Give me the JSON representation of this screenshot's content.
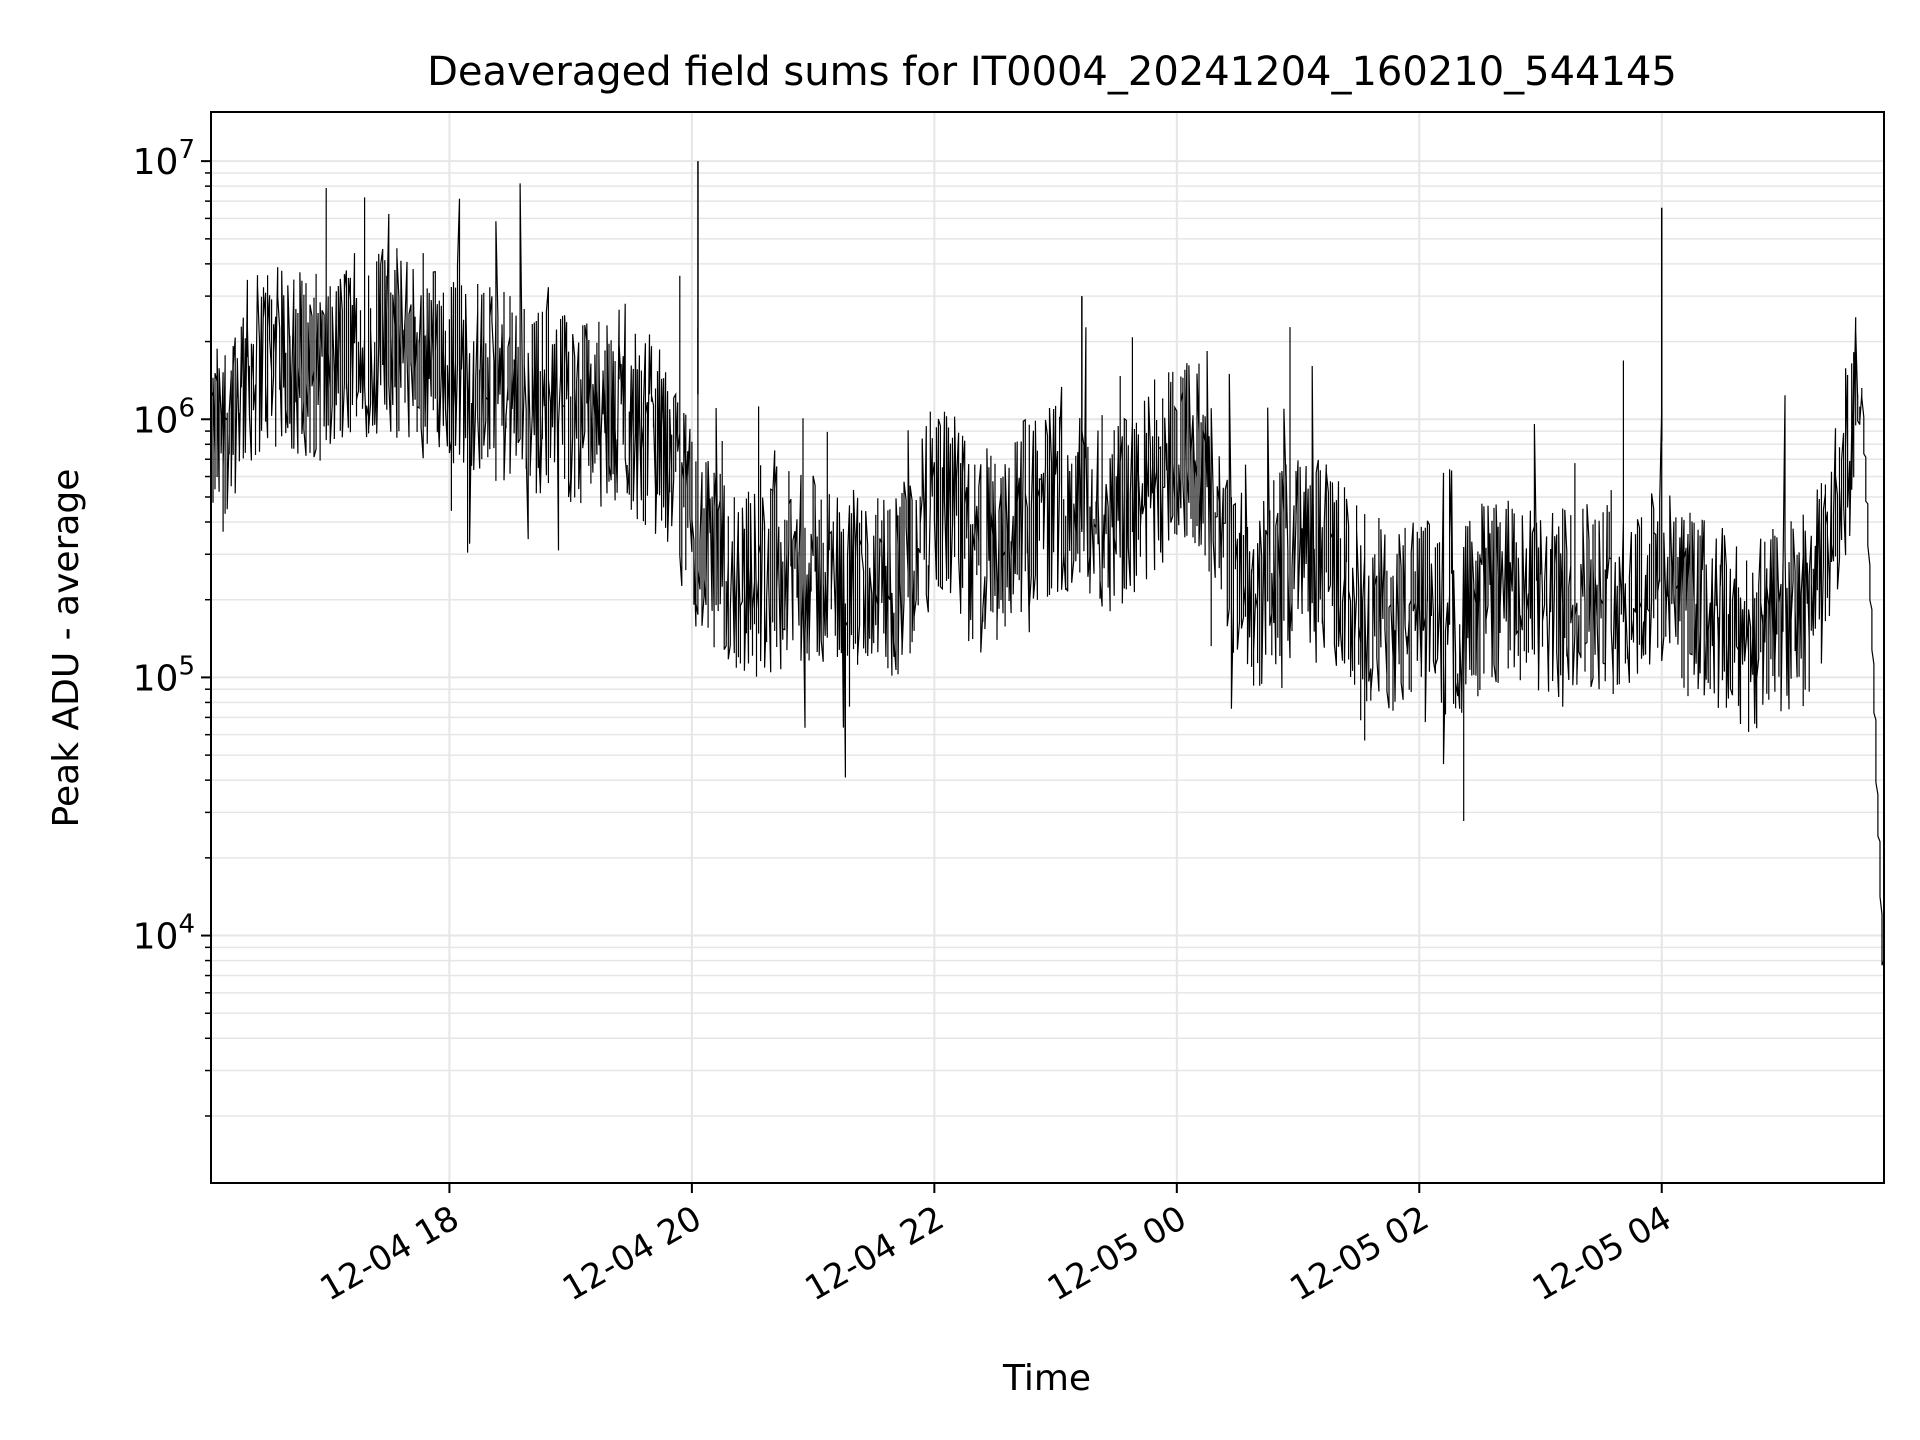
{
  "chart_data": {
    "type": "line",
    "title": "Deaveraged field sums for IT0004_20241204_160210_544145",
    "xlabel": "Time",
    "ylabel": "Peak ADU - average",
    "y_scale": "log",
    "ylim": [
      1100,
      15500000
    ],
    "xlim": [
      "2024-12-04 16:02",
      "2024-12-05 05:50"
    ],
    "grid": "major and minor, light gray",
    "line_color": "#000000",
    "x_ticks": [
      {
        "t": "2024-12-04 18:00",
        "label": "12-04 18"
      },
      {
        "t": "2024-12-04 20:00",
        "label": "12-04 20"
      },
      {
        "t": "2024-12-04 22:00",
        "label": "12-04 22"
      },
      {
        "t": "2024-12-05 00:00",
        "label": "12-05 00"
      },
      {
        "t": "2024-12-05 02:00",
        "label": "12-05 02"
      },
      {
        "t": "2024-12-05 04:00",
        "label": "12-05 04"
      }
    ],
    "y_ticks": [
      {
        "value": 10000,
        "mantissa": "10",
        "exponent": "4"
      },
      {
        "value": 100000,
        "mantissa": "10",
        "exponent": "5"
      },
      {
        "value": 1000000,
        "mantissa": "10",
        "exponent": "6"
      },
      {
        "value": 10000000,
        "mantissa": "10",
        "exponent": "7"
      }
    ],
    "series": [
      {
        "x": [
          "2024-12-04 16:02",
          "2024-12-04 16:10",
          "2024-12-04 16:20",
          "2024-12-04 16:30",
          "2024-12-04 16:40",
          "2024-12-04 16:50",
          "2024-12-04 17:00",
          "2024-12-04 17:10",
          "2024-12-04 17:20",
          "2024-12-04 17:30",
          "2024-12-04 17:40",
          "2024-12-04 17:50",
          "2024-12-04 18:00",
          "2024-12-04 18:10",
          "2024-12-04 18:20",
          "2024-12-04 18:30",
          "2024-12-04 18:40",
          "2024-12-04 18:50",
          "2024-12-04 19:00",
          "2024-12-04 19:10",
          "2024-12-04 19:20",
          "2024-12-04 19:30",
          "2024-12-04 19:40",
          "2024-12-04 19:50",
          "2024-12-04 20:00",
          "2024-12-04 20:10",
          "2024-12-04 20:20",
          "2024-12-04 20:30",
          "2024-12-04 20:40",
          "2024-12-04 20:50",
          "2024-12-04 21:00",
          "2024-12-04 21:10",
          "2024-12-04 21:20",
          "2024-12-04 21:30",
          "2024-12-04 21:40",
          "2024-12-04 21:50",
          "2024-12-04 22:00",
          "2024-12-04 22:10",
          "2024-12-04 22:20",
          "2024-12-04 22:30",
          "2024-12-04 22:40",
          "2024-12-04 22:50",
          "2024-12-04 23:00",
          "2024-12-04 23:10",
          "2024-12-04 23:20",
          "2024-12-04 23:30",
          "2024-12-04 23:40",
          "2024-12-04 23:50",
          "2024-12-05 00:00",
          "2024-12-05 00:10",
          "2024-12-05 00:20",
          "2024-12-05 00:30",
          "2024-12-05 00:40",
          "2024-12-05 00:50",
          "2024-12-05 01:00",
          "2024-12-05 01:10",
          "2024-12-05 01:20",
          "2024-12-05 01:30",
          "2024-12-05 01:40",
          "2024-12-05 01:50",
          "2024-12-05 02:00",
          "2024-12-05 02:10",
          "2024-12-05 02:20",
          "2024-12-05 02:30",
          "2024-12-05 02:40",
          "2024-12-05 02:50",
          "2024-12-05 03:00",
          "2024-12-05 03:10",
          "2024-12-05 03:20",
          "2024-12-05 03:30",
          "2024-12-05 03:40",
          "2024-12-05 03:50",
          "2024-12-05 04:00",
          "2024-12-05 04:10",
          "2024-12-05 04:20",
          "2024-12-05 04:30",
          "2024-12-05 04:40",
          "2024-12-05 04:50",
          "2024-12-05 05:00",
          "2024-12-05 05:10",
          "2024-12-05 05:20",
          "2024-12-05 05:30",
          "2024-12-05 05:40",
          "2024-12-05 05:45",
          "2024-12-05 05:50"
        ],
        "y": [
          700000,
          1000000,
          1500000,
          1800000,
          1600000,
          1700000,
          1500000,
          1800000,
          2000000,
          2000000,
          1900000,
          1800000,
          1600000,
          1500000,
          1400000,
          1300000,
          1200000,
          1200000,
          1100000,
          1100000,
          1000000,
          1000000,
          900000,
          700000,
          400000,
          280000,
          250000,
          230000,
          240000,
          270000,
          260000,
          240000,
          230000,
          220000,
          230000,
          280000,
          500000,
          450000,
          300000,
          320000,
          400000,
          450000,
          500000,
          480000,
          450000,
          420000,
          480000,
          600000,
          800000,
          750000,
          450000,
          250000,
          200000,
          260000,
          350000,
          300000,
          260000,
          200000,
          180000,
          170000,
          180000,
          170000,
          160000,
          200000,
          220000,
          200000,
          180000,
          190000,
          220000,
          210000,
          200000,
          220000,
          240000,
          200000,
          180000,
          160000,
          140000,
          150000,
          170000,
          180000,
          250000,
          600000,
          1200000,
          120000,
          7000
        ]
      }
    ],
    "notable_peaks": [
      {
        "x": "2024-12-04 20:03",
        "y": 10000000
      },
      {
        "x": "2024-12-05 04:00",
        "y": 6600000
      },
      {
        "x": "2024-12-04 23:13",
        "y": 3000000
      }
    ]
  }
}
